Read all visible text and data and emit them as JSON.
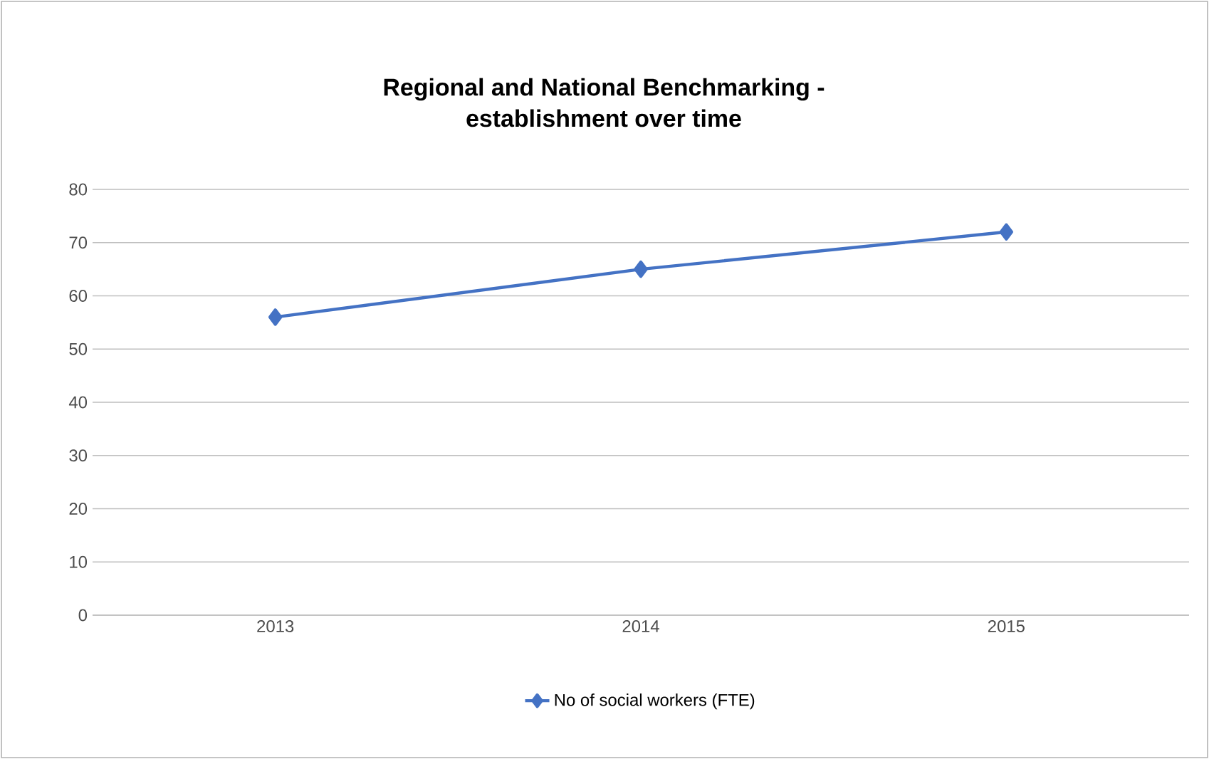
{
  "chart_data": {
    "type": "line",
    "title": "Regional and National Benchmarking -\nestablishment over time",
    "categories": [
      "2013",
      "2014",
      "2015"
    ],
    "series": [
      {
        "name": "No of social workers (FTE)",
        "color": "#4472c4",
        "values": [
          56,
          65,
          72
        ]
      }
    ],
    "ylim": [
      0,
      80
    ],
    "yticks": [
      0,
      10,
      20,
      30,
      40,
      50,
      60,
      70,
      80
    ],
    "grid": "y",
    "legend": "bottom",
    "marker": "diamond",
    "line_style": "solid"
  }
}
